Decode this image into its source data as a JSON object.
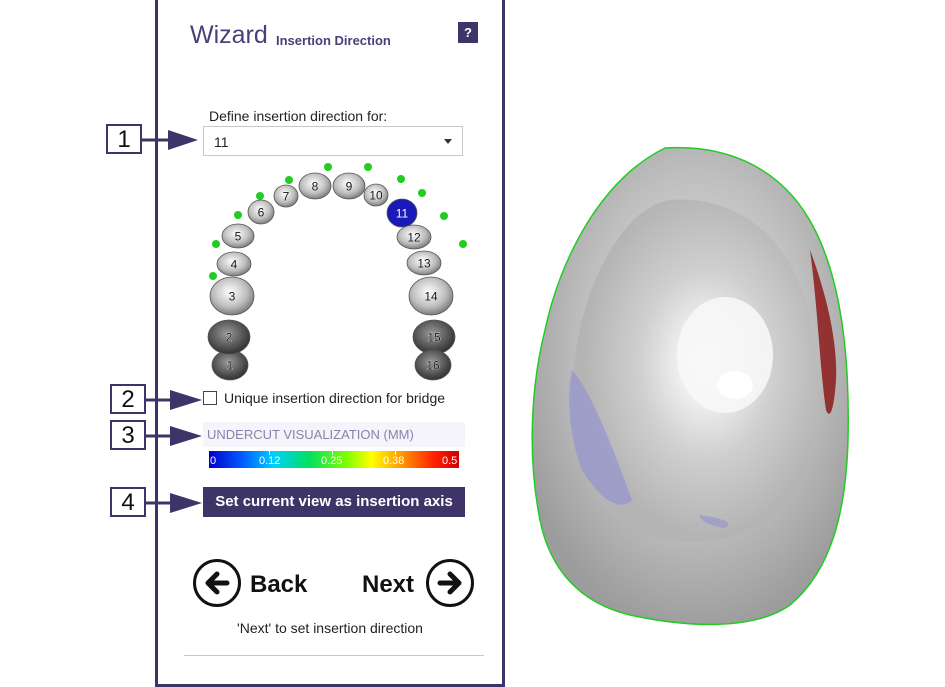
{
  "wizard": {
    "title": "Wizard",
    "subtitle": "Insertion Direction",
    "help_label": "?",
    "define_label": "Define insertion direction for:",
    "selected_tooth": "11",
    "teeth": [
      "1",
      "2",
      "3",
      "4",
      "5",
      "6",
      "7",
      "8",
      "9",
      "10",
      "11",
      "12",
      "13",
      "14",
      "15",
      "16"
    ],
    "selected_tooth_color": "#1a1ab8",
    "bridge_checkbox_label": "Unique insertion direction for bridge",
    "bridge_checked": false,
    "undercut_title": "UNDERCUT VISUALIZATION (MM)",
    "scale_labels": [
      "0",
      "0.12",
      "0.25",
      "0.38",
      "0.5"
    ],
    "set_axis_button": "Set current view as insertion axis",
    "back_label": "Back",
    "next_label": "Next",
    "hint": "'Next' to set insertion direction"
  },
  "callouts": [
    "1",
    "2",
    "3",
    "4"
  ],
  "colors": {
    "accent": "#3e3468",
    "model_outline": "#22cc22",
    "undercut_red": "#8b1a1a",
    "undercut_blue": "#8a8ad8"
  }
}
